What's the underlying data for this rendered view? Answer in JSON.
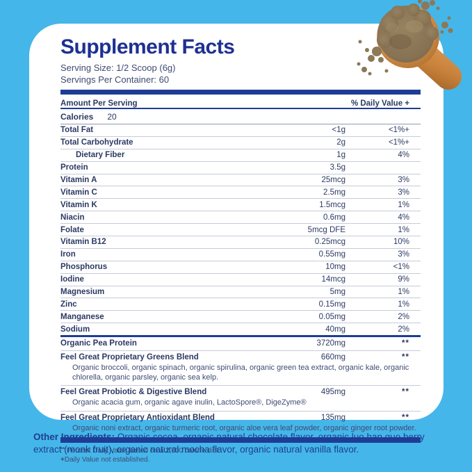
{
  "panel": {
    "title": "Supplement Facts",
    "serving_size": "Serving Size: 1/2 Scoop (6g)",
    "servings_per_container": "Servings Per Container: 60",
    "header": {
      "left": "Amount Per Serving",
      "right": "% Daily Value +"
    },
    "calories": {
      "label": "Calories",
      "value": "20"
    },
    "nutrients": [
      {
        "name": "Total Fat",
        "amount": "<1g",
        "dv": "<1%+",
        "indent": false
      },
      {
        "name": "Total Carbohydrate",
        "amount": "2g",
        "dv": "<1%+",
        "indent": false
      },
      {
        "name": "Dietary Fiber",
        "amount": "1g",
        "dv": "4%",
        "indent": true
      },
      {
        "name": "Protein",
        "amount": "3.5g",
        "dv": "",
        "indent": false
      },
      {
        "name": "Vitamin A",
        "amount": "25mcg",
        "dv": "3%",
        "indent": false
      },
      {
        "name": "Vitamin C",
        "amount": "2.5mg",
        "dv": "3%",
        "indent": false
      },
      {
        "name": "Vitamin K",
        "amount": "1.5mcg",
        "dv": "1%",
        "indent": false
      },
      {
        "name": "Niacin",
        "amount": "0.6mg",
        "dv": "4%",
        "indent": false
      },
      {
        "name": "Folate",
        "amount": "5mcg DFE",
        "dv": "1%",
        "indent": false
      },
      {
        "name": "Vitamin B12",
        "amount": "0.25mcg",
        "dv": "10%",
        "indent": false
      },
      {
        "name": "Iron",
        "amount": "0.55mg",
        "dv": "3%",
        "indent": false
      },
      {
        "name": "Phosphorus",
        "amount": "10mg",
        "dv": "<1%",
        "indent": false
      },
      {
        "name": "Iodine",
        "amount": "14mcg",
        "dv": "9%",
        "indent": false
      },
      {
        "name": "Magnesium",
        "amount": "5mg",
        "dv": "1%",
        "indent": false
      },
      {
        "name": "Zinc",
        "amount": "0.15mg",
        "dv": "1%",
        "indent": false
      },
      {
        "name": "Manganese",
        "amount": "0.05mg",
        "dv": "2%",
        "indent": false
      },
      {
        "name": "Sodium",
        "amount": "40mg",
        "dv": "2%",
        "indent": false
      }
    ],
    "blends": [
      {
        "name": "Organic Pea Protein",
        "amount": "3720mg",
        "dv": "**",
        "ingredients": ""
      },
      {
        "name": "Feel Great Proprietary Greens Blend",
        "amount": "660mg",
        "dv": "**",
        "ingredients": "Organic broccoli, organic spinach, organic spirulina, organic green tea extract, organic kale, organic chlorella, organic parsley, organic sea kelp."
      },
      {
        "name": "Feel Great Probiotic & Digestive Blend",
        "amount": "495mg",
        "dv": "**",
        "ingredients": "Organic acacia gum, organic agave inulin, LactoSpore®, DigeZyme®"
      },
      {
        "name": "Feel Great Proprietary Antioxidant Blend",
        "amount": "135mg",
        "dv": "**",
        "ingredients": "Organic noni extract, organic turmeric root, organic aloe vera leaf powder, organic ginger root powder."
      }
    ],
    "footnotes": [
      {
        "marker": "**",
        "sup": true,
        "text": " Percent Daily Value based on a 2,000 calorie diet."
      },
      {
        "marker": "+",
        "sup": false,
        "text": "Daily Value not established."
      }
    ]
  },
  "other_ingredients": {
    "label": "Other Ingredients:",
    "text": " Organic cocoa, organic natural chocolate flavor, organic luo han guo berry extract (monk fruit), organic natural mocha flavor, organic natural vanilla flavor."
  },
  "illustration": {
    "name": "wooden-scoop-with-brown-powder"
  },
  "colors": {
    "background": "#45b6e9",
    "card": "#ffffff",
    "title_navy": "#1e3092",
    "bar_navy": "#1e3c96",
    "table_text": "#2c3963",
    "other_ingredients_text": "#1d3f8e",
    "wood_light": "#e9ae6b",
    "wood_dark": "#b2722f",
    "powder": "#8d7857"
  }
}
